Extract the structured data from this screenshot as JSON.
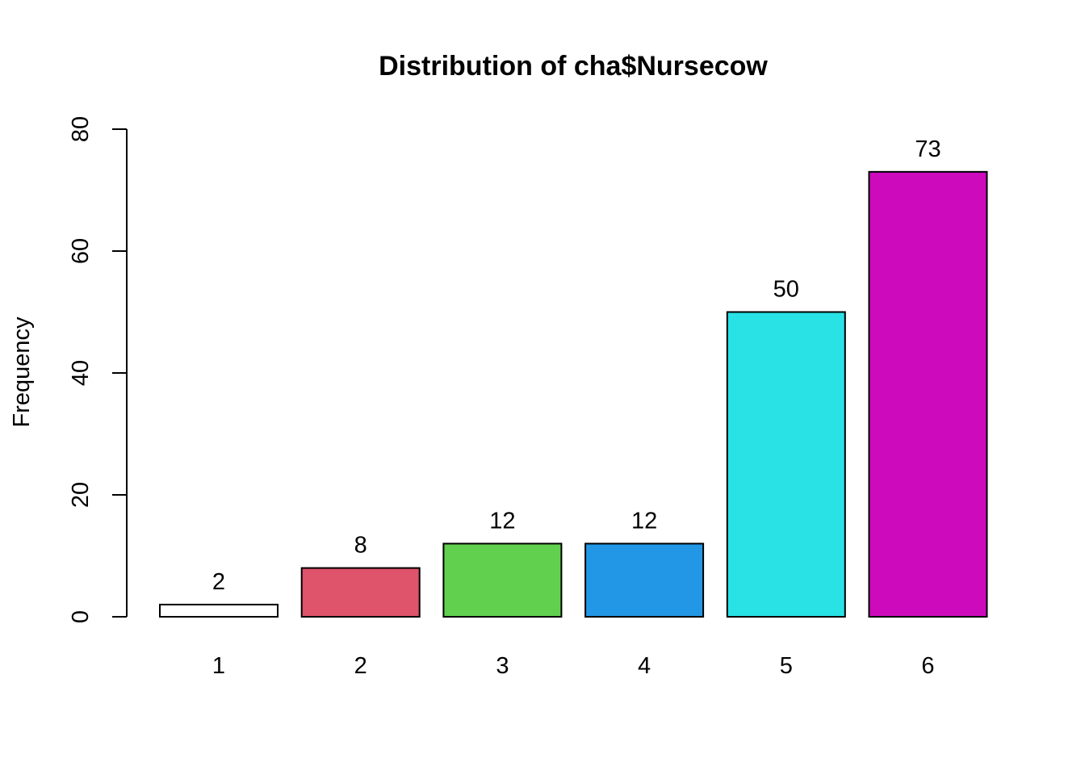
{
  "chart_data": {
    "type": "bar",
    "title": "Distribution of cha$Nursecow",
    "xlabel": "",
    "ylabel": "Frequency",
    "categories": [
      "1",
      "2",
      "3",
      "4",
      "5",
      "6"
    ],
    "values": [
      2,
      8,
      12,
      12,
      50,
      73
    ],
    "data_labels": [
      "2",
      "8",
      "12",
      "12",
      "50",
      "73"
    ],
    "colors": [
      "#FFFFFF",
      "#DF536B",
      "#61D04F",
      "#2297E6",
      "#28E2E5",
      "#CD0BBC"
    ],
    "ylim": [
      0,
      80
    ],
    "yticks": [
      0,
      20,
      40,
      60,
      80
    ],
    "ytick_labels": [
      "0",
      "20",
      "40",
      "60",
      "80"
    ],
    "grid": false,
    "legend": "none"
  }
}
